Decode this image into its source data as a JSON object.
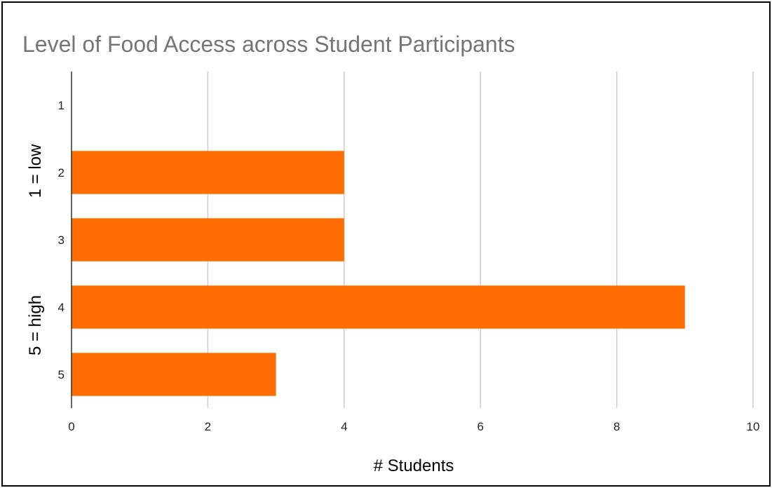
{
  "chart_data": {
    "type": "bar",
    "orientation": "horizontal",
    "title": "Level of Food Access across Student Participants",
    "xlabel": "# Students",
    "ylabel_top": "1 = low",
    "ylabel_bottom": "5 = high",
    "categories": [
      "1",
      "2",
      "3",
      "4",
      "5"
    ],
    "values": [
      0,
      4,
      4,
      9,
      3
    ],
    "xlim": [
      0,
      10
    ],
    "xticks": [
      0,
      2,
      4,
      6,
      8,
      10
    ],
    "grid": true,
    "bar_color": "#FF6D01",
    "grid_color": "#CCCCCC",
    "axis_color": "#333333"
  }
}
